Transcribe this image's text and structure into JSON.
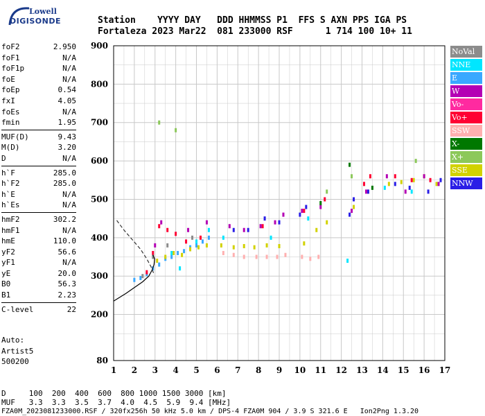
{
  "header": {
    "line1": "Station    YYYY DAY   DDD HHMMSS P1  FFS S AXN PPS IGA PS",
    "line2": "Fortaleza 2023 Mar22  081 233000 RSF      1 714 100 10+ 11"
  },
  "logo": {
    "brand_top": "Lowell",
    "brand_main": "DIGISONDE"
  },
  "params": [
    {
      "group": 1,
      "items": [
        {
          "name": "foF2",
          "value": "2.950"
        },
        {
          "name": "foF1",
          "value": "N/A"
        },
        {
          "name": "foF1p",
          "value": "N/A"
        },
        {
          "name": "foE",
          "value": "N/A"
        },
        {
          "name": "foEp",
          "value": "0.54"
        },
        {
          "name": "fxI",
          "value": "4.05"
        },
        {
          "name": "foEs",
          "value": "N/A"
        },
        {
          "name": "fmin",
          "value": "1.95"
        }
      ]
    },
    {
      "group": 2,
      "items": [
        {
          "name": "MUF(D)",
          "value": "9.43"
        },
        {
          "name": "M(D)",
          "value": "3.20"
        },
        {
          "name": "D",
          "value": "N/A"
        }
      ]
    },
    {
      "group": 3,
      "items": [
        {
          "name": "h`F",
          "value": "285.0"
        },
        {
          "name": "h`F2",
          "value": "285.0"
        },
        {
          "name": "h`E",
          "value": "N/A"
        },
        {
          "name": "h`Es",
          "value": "N/A"
        }
      ]
    },
    {
      "group": 4,
      "items": [
        {
          "name": "hmF2",
          "value": "302.2"
        },
        {
          "name": "hmF1",
          "value": "N/A"
        },
        {
          "name": "hmE",
          "value": "110.0"
        },
        {
          "name": "yF2",
          "value": "56.6"
        },
        {
          "name": "yF1",
          "value": "N/A"
        },
        {
          "name": "yE",
          "value": "20.0"
        },
        {
          "name": "B0",
          "value": "56.3"
        },
        {
          "name": "B1",
          "value": "2.23"
        }
      ]
    },
    {
      "group": 5,
      "items": [
        {
          "name": "C-level",
          "value": "22"
        }
      ]
    }
  ],
  "autoscaling": {
    "line1": "Auto:",
    "line2": "Artist5",
    "line3": "500200"
  },
  "legend": [
    {
      "label": "NoVal",
      "color": "#8c8c8c"
    },
    {
      "label": "NNE",
      "color": "#00e6ff"
    },
    {
      "label": "E",
      "color": "#3aa8ff"
    },
    {
      "label": "W",
      "color": "#b400b4"
    },
    {
      "label": "Vo-",
      "color": "#ff2aa0"
    },
    {
      "label": "Vo+",
      "color": "#ff0033"
    },
    {
      "label": "SSW",
      "color": "#ffb0b0"
    },
    {
      "label": "X-",
      "color": "#007800"
    },
    {
      "label": "X+",
      "color": "#8cc85a"
    },
    {
      "label": "SSE",
      "color": "#d2d200"
    },
    {
      "label": "NNW",
      "color": "#2a1ee6"
    }
  ],
  "footer": {
    "d_line": "D     100  200  400  600  800 1000 1500 3000 [km]",
    "muf_line": "MUF   3.3  3.3  3.5  3.7  4.0  4.5  5.9  9.4 [MHz]",
    "file_line": "FZA0M_2023081233000.RSF / 320fx256h 50 kHz 5.0 km / DPS-4 FZA0M 904 / 3.9 S 321.6 E   Ion2Png 1.3.20"
  },
  "chart_data": {
    "type": "scatter",
    "title": "",
    "xlabel": "",
    "ylabel": "",
    "xlim": [
      1,
      17
    ],
    "ylim": [
      80,
      900
    ],
    "x_ticks": [
      1,
      2,
      3,
      4,
      5,
      6,
      7,
      8,
      9,
      10,
      11,
      12,
      13,
      14,
      15,
      16,
      17
    ],
    "y_ticks": [
      80,
      200,
      300,
      400,
      500,
      600,
      700,
      800,
      900
    ],
    "grid": true,
    "series": [
      {
        "name": "E",
        "x": [
          2.0,
          2.3,
          2.6,
          2.9,
          3.2,
          3.5,
          3.8,
          4.1,
          4.4,
          4.7,
          5.0,
          5.3,
          5.6
        ],
        "y": [
          290,
          295,
          305,
          320,
          330,
          345,
          350,
          360,
          365,
          375,
          380,
          390,
          400
        ]
      },
      {
        "name": "SSE",
        "x": [
          3.1,
          3.5,
          3.9,
          4.3,
          4.7,
          5.1,
          5.5,
          6.2,
          6.8,
          7.3,
          7.8,
          8.4,
          9.0,
          10.2,
          10.8,
          11.3,
          12.6,
          13.3,
          14.3,
          14.9,
          15.5,
          16.0,
          16.6
        ],
        "y": [
          340,
          350,
          360,
          355,
          370,
          375,
          380,
          380,
          375,
          378,
          375,
          380,
          378,
          385,
          420,
          440,
          480,
          520,
          540,
          545,
          550,
          560,
          540
        ]
      },
      {
        "name": "SSW",
        "x": [
          6.3,
          6.8,
          7.3,
          7.9,
          8.4,
          8.9,
          9.3,
          10.1,
          10.5,
          10.9
        ],
        "y": [
          360,
          355,
          350,
          350,
          350,
          350,
          355,
          350,
          345,
          350
        ]
      },
      {
        "name": "Vo+",
        "x": [
          2.6,
          2.9,
          3.2,
          3.6,
          4.0,
          4.5,
          5.2,
          8.2,
          10.2,
          11.2,
          13.1,
          13.4,
          14.6,
          15.4,
          16.3
        ],
        "y": [
          310,
          360,
          430,
          420,
          410,
          390,
          400,
          430,
          470,
          500,
          540,
          560,
          560,
          550,
          550
        ]
      },
      {
        "name": "W",
        "x": [
          3.0,
          3.3,
          4.6,
          5.5,
          6.6,
          7.3,
          8.1,
          8.8,
          9.2,
          10.1,
          11.0,
          12.5,
          13.2,
          14.2,
          15.1,
          16.0,
          16.7
        ],
        "y": [
          380,
          440,
          420,
          440,
          430,
          420,
          430,
          440,
          460,
          470,
          480,
          470,
          520,
          560,
          520,
          560,
          540
        ]
      },
      {
        "name": "NNW",
        "x": [
          6.8,
          7.5,
          8.3,
          9.0,
          10.0,
          10.3,
          12.4,
          12.6,
          13.3,
          14.6,
          15.3,
          16.2,
          16.8
        ],
        "y": [
          420,
          420,
          450,
          440,
          460,
          480,
          460,
          500,
          520,
          540,
          530,
          520,
          550
        ]
      },
      {
        "name": "NNE",
        "x": [
          3.8,
          4.2,
          5.0,
          5.6,
          6.3,
          8.6,
          10.4,
          12.3,
          14.1,
          15.4
        ],
        "y": [
          360,
          320,
          390,
          420,
          400,
          400,
          450,
          340,
          530,
          520
        ]
      },
      {
        "name": "X-",
        "x": [
          11.0,
          12.4,
          13.5
        ],
        "y": [
          490,
          590,
          530
        ]
      },
      {
        "name": "X+",
        "x": [
          3.2,
          4.0,
          11.3,
          12.5,
          15.6
        ],
        "y": [
          700,
          680,
          520,
          560,
          600
        ]
      },
      {
        "name": "NoVal",
        "x": [
          2.4,
          2.9,
          3.6,
          4.8
        ],
        "y": [
          300,
          350,
          380,
          400
        ]
      }
    ],
    "curves": [
      {
        "name": "profile-solid",
        "x": [
          1.0,
          1.6,
          2.0,
          2.4,
          2.7,
          2.85,
          2.95,
          2.98,
          2.9
        ],
        "y": [
          235,
          255,
          270,
          285,
          300,
          315,
          330,
          345,
          355
        ]
      },
      {
        "name": "profile-dashed",
        "x": [
          1.15,
          1.5,
          1.9,
          2.3,
          2.6,
          2.8,
          2.95
        ],
        "y": [
          445,
          420,
          395,
          370,
          345,
          325,
          305
        ]
      }
    ]
  }
}
